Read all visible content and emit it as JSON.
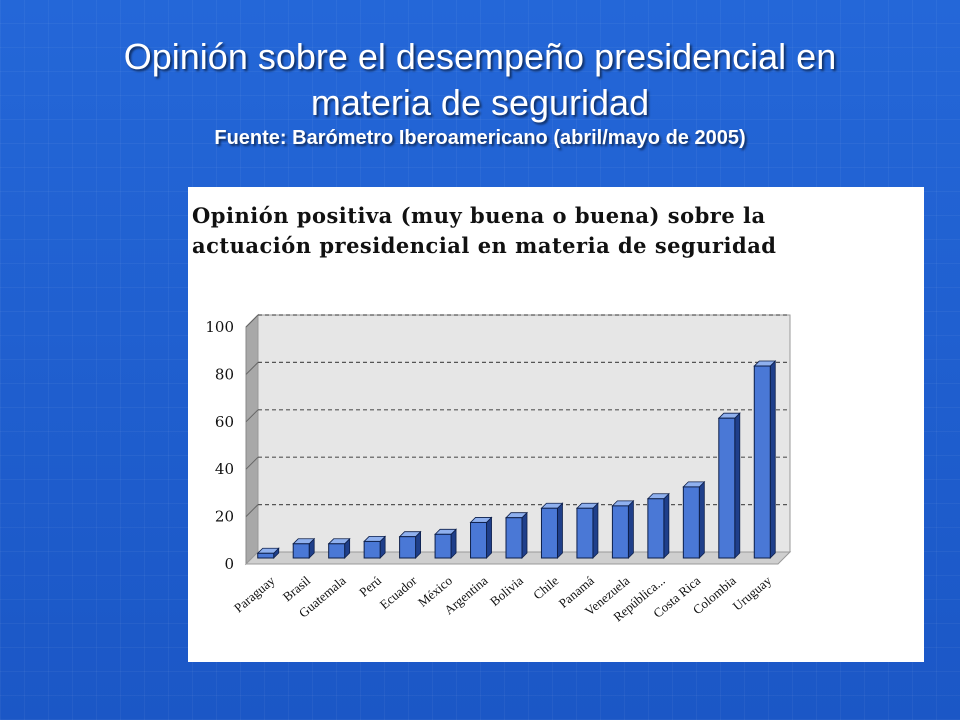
{
  "slide": {
    "title_line1": "Opinión sobre el desempeño presidencial en",
    "title_line2": "materia de seguridad",
    "source": "Fuente: Barómetro Iberoamericano (abril/mayo de 2005)"
  },
  "colors": {
    "background": "#1f5fd1",
    "bar_front": "#4a78d6",
    "bar_side": "#1f3f8a",
    "bar_top": "#8fb0ee",
    "wall": "#e6e6e6"
  },
  "chart_data": {
    "type": "bar",
    "title_line1": "Opinión positiva (muy buena o buena) sobre la",
    "title_line2": "actuación presidencial en materia de seguridad",
    "categories": [
      "Paraguay",
      "Brasil",
      "Guatemala",
      "Perú",
      "Ecuador",
      "México",
      "Argentina",
      "Bolivia",
      "Chile",
      "Panamá",
      "Venezuela",
      "República...",
      "Costa Rica",
      "Colombia",
      "Uruguay"
    ],
    "values": [
      2,
      6,
      6,
      7,
      9,
      10,
      15,
      17,
      21,
      21,
      22,
      25,
      30,
      59,
      81
    ],
    "ylim": [
      0,
      100
    ],
    "yticks": [
      "0",
      "20",
      "40",
      "60",
      "80",
      "100"
    ],
    "grid": true,
    "style": "3d-column"
  }
}
